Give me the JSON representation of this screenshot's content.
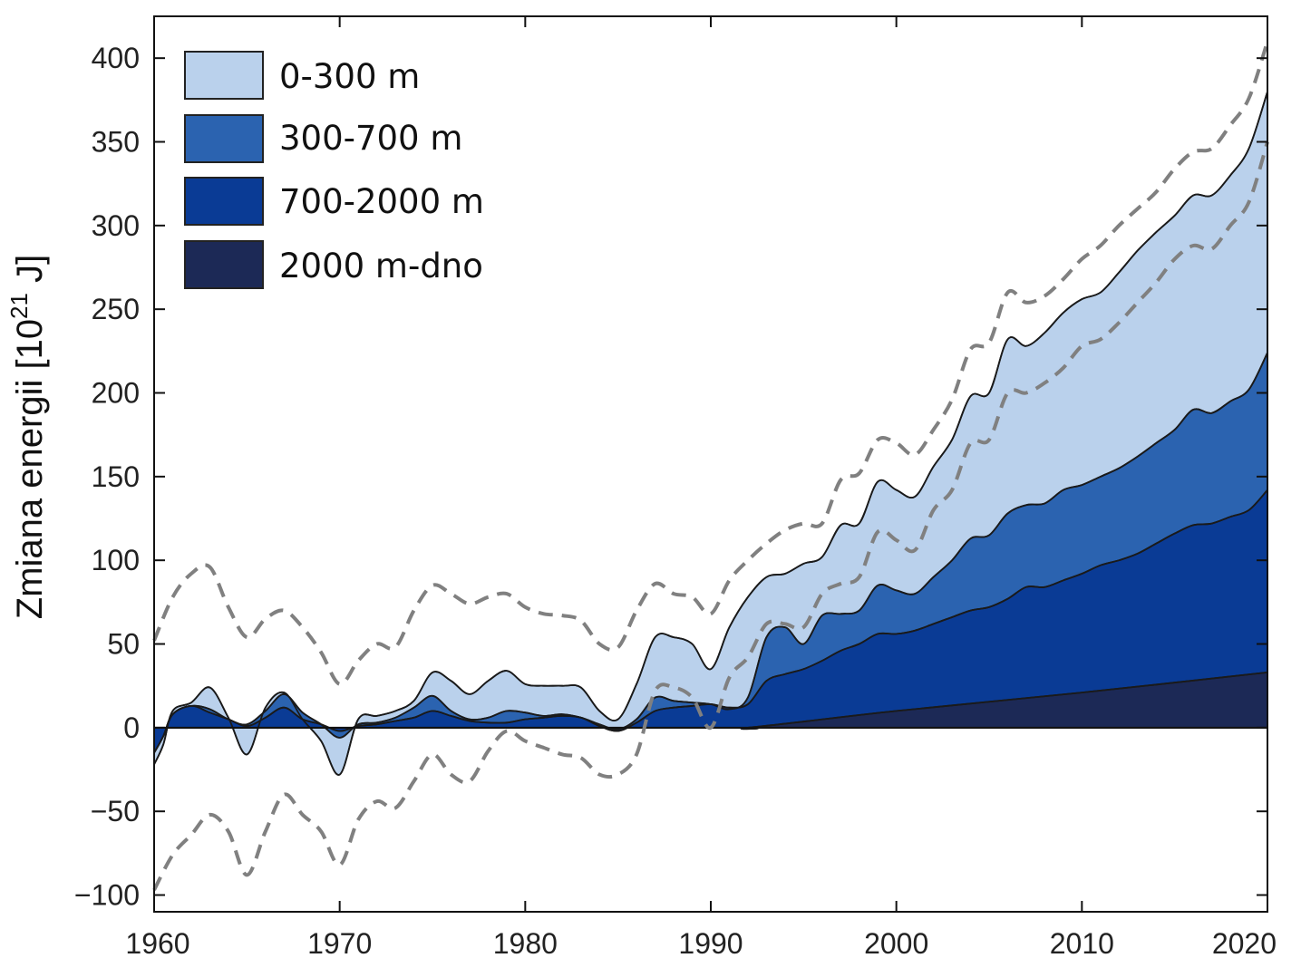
{
  "chart_data": {
    "type": "area",
    "title": "",
    "xlabel": "",
    "ylabel": "Zmiana energii [10",
    "ylabel_sup": "21",
    "ylabel_unit": " J]",
    "xlim": [
      1960,
      2020
    ],
    "ylim": [
      -110,
      425
    ],
    "x_ticks": [
      1960,
      1970,
      1980,
      1990,
      2000,
      2010,
      2020
    ],
    "x_tick_labels": [
      "1960",
      "1970",
      "1980",
      "1990",
      "2000",
      "2010",
      "2020"
    ],
    "y_ticks": [
      -100,
      -50,
      0,
      50,
      100,
      150,
      200,
      250,
      300,
      350,
      400
    ],
    "y_tick_labels": [
      "−100",
      "−50",
      "0",
      "50",
      "100",
      "150",
      "200",
      "250",
      "300",
      "350",
      "400"
    ],
    "legend": [
      {
        "label": "0-300 m",
        "color": "#bad1ec"
      },
      {
        "label": "300-700 m",
        "color": "#2b63b0"
      },
      {
        "label": "700-2000 m",
        "color": "#0a3b95"
      },
      {
        "label": "2000 m-dno",
        "color": "#1c2956"
      }
    ],
    "series": [
      {
        "name": "2000 m-dno",
        "color": "#1c2956",
        "points": [
          [
            1960,
            0
          ],
          [
            1990,
            0
          ],
          [
            1992,
            0
          ],
          [
            2000,
            10
          ],
          [
            2010,
            21
          ],
          [
            2020,
            33
          ]
        ]
      },
      {
        "name": "700-2000 m",
        "color": "#0a3b95",
        "points": [
          [
            1960,
            -15
          ],
          [
            1960.5,
            -5
          ],
          [
            1961,
            8
          ],
          [
            1962,
            13
          ],
          [
            1963,
            9
          ],
          [
            1964,
            5
          ],
          [
            1965,
            1
          ],
          [
            1966,
            6
          ],
          [
            1967,
            12
          ],
          [
            1968,
            5
          ],
          [
            1969,
            2
          ],
          [
            1970,
            -2
          ],
          [
            1971,
            1
          ],
          [
            1972,
            2
          ],
          [
            1973,
            4
          ],
          [
            1974,
            6
          ],
          [
            1975,
            10
          ],
          [
            1976,
            7
          ],
          [
            1977,
            4
          ],
          [
            1978,
            3
          ],
          [
            1979,
            3
          ],
          [
            1980,
            5
          ],
          [
            1981,
            6
          ],
          [
            1982,
            7
          ],
          [
            1983,
            6
          ],
          [
            1984,
            1
          ],
          [
            1985,
            -2
          ],
          [
            1986,
            3
          ],
          [
            1987,
            10
          ],
          [
            1988,
            12
          ],
          [
            1989,
            13
          ],
          [
            1990,
            14
          ],
          [
            1991,
            12
          ],
          [
            1992,
            14
          ],
          [
            1993,
            28
          ],
          [
            1994,
            32
          ],
          [
            1995,
            35
          ],
          [
            1996,
            40
          ],
          [
            1997,
            46
          ],
          [
            1998,
            50
          ],
          [
            1999,
            56
          ],
          [
            2000,
            56
          ],
          [
            2001,
            58
          ],
          [
            2002,
            62
          ],
          [
            2003,
            66
          ],
          [
            2004,
            70
          ],
          [
            2005,
            72
          ],
          [
            2006,
            77
          ],
          [
            2007,
            84
          ],
          [
            2008,
            84
          ],
          [
            2009,
            88
          ],
          [
            2010,
            92
          ],
          [
            2011,
            97
          ],
          [
            2012,
            100
          ],
          [
            2013,
            104
          ],
          [
            2014,
            110
          ],
          [
            2015,
            116
          ],
          [
            2016,
            121
          ],
          [
            2017,
            122
          ],
          [
            2018,
            126
          ],
          [
            2019,
            130
          ],
          [
            2020,
            142
          ]
        ]
      },
      {
        "name": "300-700 m",
        "color": "#2b63b0",
        "points": [
          [
            1960,
            -15
          ],
          [
            1960.5,
            -5
          ],
          [
            1961,
            8
          ],
          [
            1962,
            13
          ],
          [
            1963,
            11
          ],
          [
            1964,
            5
          ],
          [
            1965,
            2
          ],
          [
            1966,
            10
          ],
          [
            1967,
            20
          ],
          [
            1968,
            9
          ],
          [
            1969,
            2
          ],
          [
            1970,
            -6
          ],
          [
            1971,
            2
          ],
          [
            1972,
            3
          ],
          [
            1973,
            6
          ],
          [
            1974,
            12
          ],
          [
            1975,
            19
          ],
          [
            1976,
            10
          ],
          [
            1977,
            5
          ],
          [
            1978,
            6
          ],
          [
            1979,
            10
          ],
          [
            1980,
            9
          ],
          [
            1981,
            7
          ],
          [
            1982,
            8
          ],
          [
            1983,
            6
          ],
          [
            1984,
            2
          ],
          [
            1985,
            -1
          ],
          [
            1986,
            5
          ],
          [
            1987,
            18
          ],
          [
            1988,
            16
          ],
          [
            1989,
            15
          ],
          [
            1990,
            14
          ],
          [
            1991,
            11
          ],
          [
            1992,
            18
          ],
          [
            1993,
            54
          ],
          [
            1994,
            60
          ],
          [
            1995,
            50
          ],
          [
            1996,
            67
          ],
          [
            1997,
            68
          ],
          [
            1998,
            70
          ],
          [
            1999,
            85
          ],
          [
            2000,
            82
          ],
          [
            2001,
            80
          ],
          [
            2002,
            90
          ],
          [
            2003,
            100
          ],
          [
            2004,
            113
          ],
          [
            2005,
            115
          ],
          [
            2006,
            128
          ],
          [
            2007,
            133
          ],
          [
            2008,
            134
          ],
          [
            2009,
            142
          ],
          [
            2010,
            145
          ],
          [
            2011,
            150
          ],
          [
            2012,
            155
          ],
          [
            2013,
            162
          ],
          [
            2014,
            170
          ],
          [
            2015,
            178
          ],
          [
            2016,
            190
          ],
          [
            2017,
            188
          ],
          [
            2018,
            195
          ],
          [
            2019,
            202
          ],
          [
            2020,
            224
          ]
        ]
      },
      {
        "name": "0-300 m",
        "color": "#bad1ec",
        "points": [
          [
            1960,
            -22
          ],
          [
            1960.5,
            -10
          ],
          [
            1961,
            10
          ],
          [
            1962,
            15
          ],
          [
            1963,
            24
          ],
          [
            1964,
            6
          ],
          [
            1965,
            -16
          ],
          [
            1966,
            12
          ],
          [
            1967,
            21
          ],
          [
            1968,
            5
          ],
          [
            1969,
            -8
          ],
          [
            1970,
            -28
          ],
          [
            1971,
            5
          ],
          [
            1972,
            7
          ],
          [
            1973,
            10
          ],
          [
            1974,
            16
          ],
          [
            1975,
            33
          ],
          [
            1976,
            28
          ],
          [
            1977,
            20
          ],
          [
            1978,
            28
          ],
          [
            1979,
            34
          ],
          [
            1980,
            26
          ],
          [
            1981,
            25
          ],
          [
            1982,
            25
          ],
          [
            1983,
            24
          ],
          [
            1984,
            10
          ],
          [
            1985,
            5
          ],
          [
            1986,
            26
          ],
          [
            1987,
            54
          ],
          [
            1988,
            54
          ],
          [
            1989,
            50
          ],
          [
            1990,
            35
          ],
          [
            1991,
            60
          ],
          [
            1992,
            78
          ],
          [
            1993,
            90
          ],
          [
            1994,
            92
          ],
          [
            1995,
            98
          ],
          [
            1996,
            102
          ],
          [
            1997,
            121
          ],
          [
            1998,
            122
          ],
          [
            1999,
            147
          ],
          [
            2000,
            142
          ],
          [
            2001,
            138
          ],
          [
            2002,
            156
          ],
          [
            2003,
            172
          ],
          [
            2004,
            198
          ],
          [
            2005,
            200
          ],
          [
            2006,
            232
          ],
          [
            2007,
            228
          ],
          [
            2008,
            236
          ],
          [
            2009,
            248
          ],
          [
            2010,
            256
          ],
          [
            2011,
            260
          ],
          [
            2012,
            272
          ],
          [
            2013,
            285
          ],
          [
            2014,
            296
          ],
          [
            2015,
            306
          ],
          [
            2016,
            318
          ],
          [
            2017,
            318
          ],
          [
            2018,
            330
          ],
          [
            2019,
            346
          ],
          [
            2020,
            380
          ]
        ]
      }
    ],
    "uncertainty_upper": {
      "style": "dashed",
      "color": "#808080",
      "points": [
        [
          1960,
          52
        ],
        [
          1961,
          78
        ],
        [
          1962,
          92
        ],
        [
          1963,
          96
        ],
        [
          1964,
          72
        ],
        [
          1965,
          54
        ],
        [
          1966,
          65
        ],
        [
          1967,
          70
        ],
        [
          1968,
          60
        ],
        [
          1969,
          45
        ],
        [
          1970,
          26
        ],
        [
          1971,
          40
        ],
        [
          1972,
          50
        ],
        [
          1973,
          48
        ],
        [
          1974,
          70
        ],
        [
          1975,
          85
        ],
        [
          1976,
          80
        ],
        [
          1977,
          74
        ],
        [
          1978,
          78
        ],
        [
          1979,
          80
        ],
        [
          1980,
          72
        ],
        [
          1981,
          68
        ],
        [
          1982,
          67
        ],
        [
          1983,
          64
        ],
        [
          1984,
          50
        ],
        [
          1985,
          48
        ],
        [
          1986,
          70
        ],
        [
          1987,
          86
        ],
        [
          1988,
          80
        ],
        [
          1989,
          78
        ],
        [
          1990,
          68
        ],
        [
          1991,
          88
        ],
        [
          1992,
          100
        ],
        [
          1993,
          110
        ],
        [
          1994,
          118
        ],
        [
          1995,
          122
        ],
        [
          1996,
          122
        ],
        [
          1997,
          148
        ],
        [
          1998,
          152
        ],
        [
          1999,
          172
        ],
        [
          2000,
          170
        ],
        [
          2001,
          163
        ],
        [
          2002,
          178
        ],
        [
          2003,
          196
        ],
        [
          2004,
          226
        ],
        [
          2005,
          230
        ],
        [
          2006,
          260
        ],
        [
          2007,
          254
        ],
        [
          2008,
          258
        ],
        [
          2009,
          268
        ],
        [
          2010,
          280
        ],
        [
          2011,
          288
        ],
        [
          2012,
          300
        ],
        [
          2013,
          310
        ],
        [
          2014,
          320
        ],
        [
          2015,
          334
        ],
        [
          2016,
          344
        ],
        [
          2017,
          346
        ],
        [
          2018,
          360
        ],
        [
          2019,
          376
        ],
        [
          2020,
          410
        ]
      ]
    },
    "uncertainty_lower": {
      "style": "dashed",
      "color": "#808080",
      "points": [
        [
          1960,
          -97
        ],
        [
          1961,
          -76
        ],
        [
          1962,
          -64
        ],
        [
          1963,
          -52
        ],
        [
          1964,
          -62
        ],
        [
          1965,
          -88
        ],
        [
          1966,
          -62
        ],
        [
          1967,
          -40
        ],
        [
          1968,
          -52
        ],
        [
          1969,
          -62
        ],
        [
          1970,
          -82
        ],
        [
          1971,
          -55
        ],
        [
          1972,
          -44
        ],
        [
          1973,
          -48
        ],
        [
          1974,
          -32
        ],
        [
          1975,
          -16
        ],
        [
          1976,
          -28
        ],
        [
          1977,
          -32
        ],
        [
          1978,
          -14
        ],
        [
          1979,
          -2
        ],
        [
          1980,
          -8
        ],
        [
          1981,
          -12
        ],
        [
          1982,
          -16
        ],
        [
          1983,
          -18
        ],
        [
          1984,
          -28
        ],
        [
          1985,
          -28
        ],
        [
          1986,
          -16
        ],
        [
          1987,
          22
        ],
        [
          1988,
          24
        ],
        [
          1989,
          18
        ],
        [
          1990,
          0
        ],
        [
          1991,
          30
        ],
        [
          1992,
          42
        ],
        [
          1993,
          62
        ],
        [
          1994,
          62
        ],
        [
          1995,
          60
        ],
        [
          1996,
          80
        ],
        [
          1997,
          86
        ],
        [
          1998,
          90
        ],
        [
          1999,
          117
        ],
        [
          2000,
          112
        ],
        [
          2001,
          106
        ],
        [
          2002,
          130
        ],
        [
          2003,
          142
        ],
        [
          2004,
          170
        ],
        [
          2005,
          172
        ],
        [
          2006,
          200
        ],
        [
          2007,
          200
        ],
        [
          2008,
          206
        ],
        [
          2009,
          215
        ],
        [
          2010,
          228
        ],
        [
          2011,
          232
        ],
        [
          2012,
          242
        ],
        [
          2013,
          254
        ],
        [
          2014,
          266
        ],
        [
          2015,
          280
        ],
        [
          2016,
          288
        ],
        [
          2017,
          286
        ],
        [
          2018,
          300
        ],
        [
          2019,
          314
        ],
        [
          2020,
          350
        ]
      ]
    }
  }
}
